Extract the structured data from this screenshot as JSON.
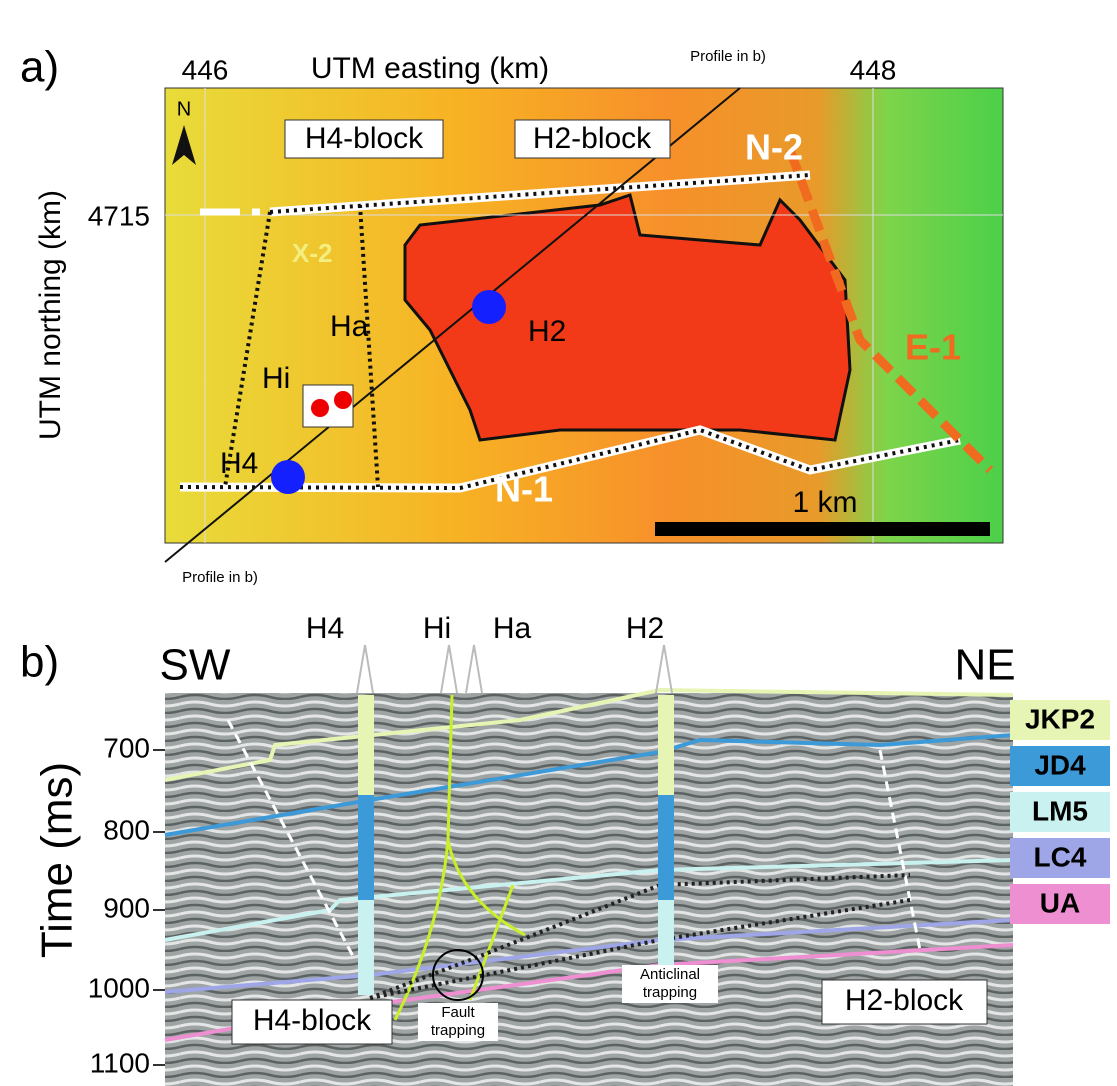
{
  "panel_a": {
    "label": "a)",
    "x_axis_title": "UTM easting (km)",
    "x_ticks": [
      446,
      448
    ],
    "y_axis_title": "UTM northing (km)",
    "y_ticks": [
      4715
    ],
    "north": "N",
    "profile_label_top": "Profile in b)",
    "profile_label_bottom": "Profile in b)",
    "blocks": [
      "H4-block",
      "H2-block"
    ],
    "faults": [
      "N-2",
      "N-1",
      "E-1",
      "X-2"
    ],
    "wells": [
      "Hi",
      "Ha",
      "H2",
      "H4"
    ],
    "scale_bar": "1 km"
  },
  "panel_b": {
    "label": "b)",
    "left": "SW",
    "right": "NE",
    "y_axis_title": "Time (ms)",
    "y_ticks": [
      700,
      800,
      900,
      1000,
      1100
    ],
    "wells": [
      "H4",
      "Hi",
      "Ha",
      "H2"
    ],
    "horizons": [
      {
        "name": "JKP2",
        "color": "#e6f4b4"
      },
      {
        "name": "JD4",
        "color": "#3d9ad8"
      },
      {
        "name": "LM5",
        "color": "#c9f1ef"
      },
      {
        "name": "LC4",
        "color": "#9ea6e8"
      },
      {
        "name": "UA",
        "color": "#ee8fd2"
      }
    ],
    "annotation_anticlinal": [
      "Anticlinal",
      "trapping"
    ],
    "annotation_fault": [
      "Fault",
      "trapping"
    ],
    "blocks": [
      "H4-block",
      "H2-block"
    ]
  }
}
